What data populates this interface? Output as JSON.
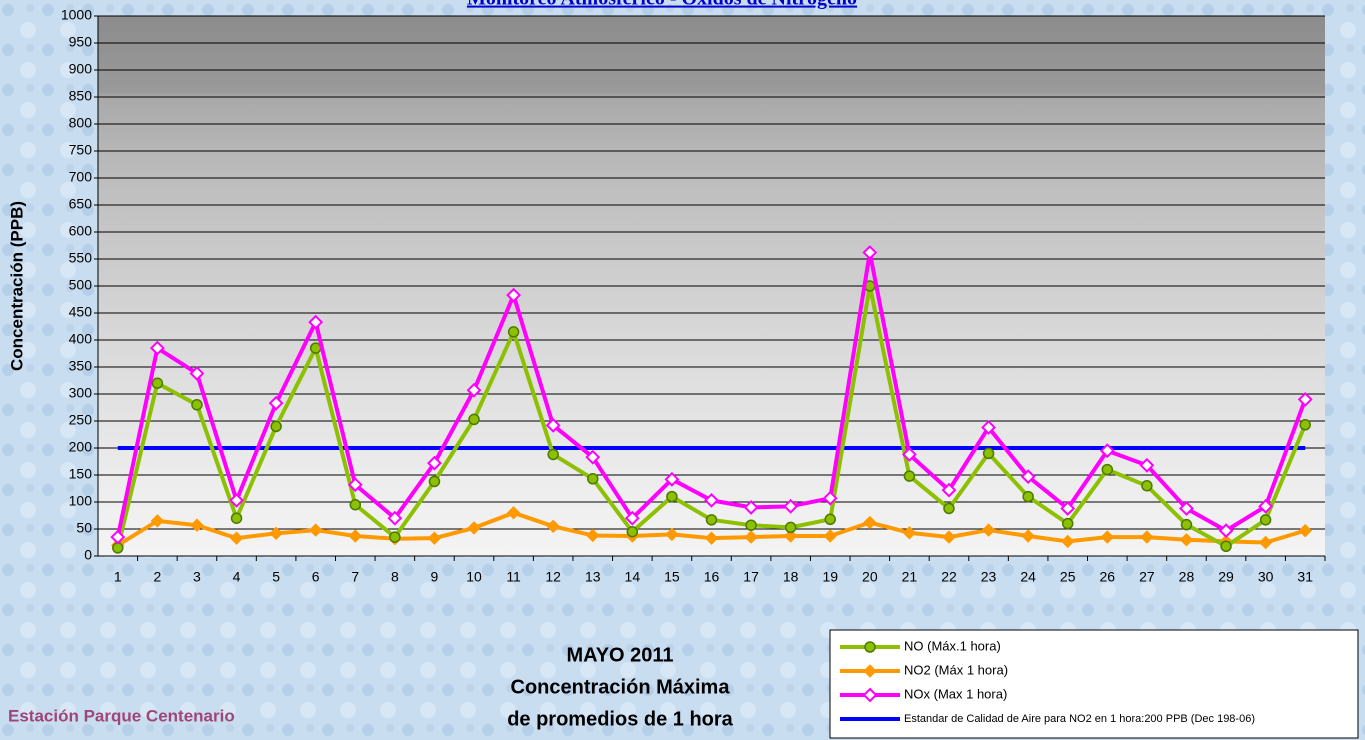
{
  "chart_data": {
    "type": "line",
    "title": "Monitoreo Atmosférico - Óxidos de Nitrógeno",
    "subtitle": [
      "MAYO 2011",
      "Concentración Máxima",
      "de promedios de 1 hora"
    ],
    "station": "Estación Parque Centenario",
    "y_label": "Concentración  (PPB)",
    "categories": [
      1,
      2,
      3,
      4,
      5,
      6,
      7,
      8,
      9,
      10,
      11,
      12,
      13,
      14,
      15,
      16,
      17,
      18,
      19,
      20,
      21,
      22,
      23,
      24,
      25,
      26,
      27,
      28,
      29,
      30,
      31
    ],
    "ylim": [
      0,
      1000
    ],
    "yticks": [
      0,
      50,
      100,
      150,
      200,
      250,
      300,
      350,
      400,
      450,
      500,
      550,
      600,
      650,
      700,
      750,
      800,
      850,
      900,
      950,
      1000
    ],
    "grid": true,
    "series": [
      {
        "name": "NO (Máx.1 hora)",
        "color": "#8cc000",
        "marker": "circle",
        "values": [
          15,
          320,
          280,
          70,
          240,
          385,
          95,
          35,
          138,
          253,
          415,
          188,
          143,
          45,
          110,
          67,
          57,
          53,
          68,
          500,
          148,
          88,
          190,
          110,
          60,
          160,
          130,
          58,
          18,
          67,
          243
        ]
      },
      {
        "name": "NO2 (Máx 1 hora)",
        "color": "#ff9900",
        "marker": "diamond",
        "values": [
          20,
          65,
          57,
          33,
          42,
          48,
          37,
          32,
          33,
          52,
          80,
          55,
          38,
          37,
          40,
          33,
          35,
          37,
          37,
          62,
          43,
          35,
          48,
          37,
          27,
          35,
          35,
          30,
          27,
          25,
          47
        ]
      },
      {
        "name": "NOx (Max 1 hora)",
        "color": "#ff00ff",
        "marker": "hollow-diamond",
        "values": [
          35,
          385,
          338,
          103,
          283,
          433,
          132,
          70,
          172,
          307,
          483,
          242,
          183,
          70,
          142,
          103,
          90,
          92,
          107,
          562,
          188,
          122,
          238,
          147,
          88,
          195,
          168,
          88,
          47,
          92,
          290
        ]
      },
      {
        "name": "Estandar de Calidad de Aire para NO2 en 1 hora:200 PPB (Dec 198-06)",
        "color": "#0000ff",
        "marker": "none",
        "values": [
          200,
          200,
          200,
          200,
          200,
          200,
          200,
          200,
          200,
          200,
          200,
          200,
          200,
          200,
          200,
          200,
          200,
          200,
          200,
          200,
          200,
          200,
          200,
          200,
          200,
          200,
          200,
          200,
          200,
          200,
          200
        ]
      }
    ]
  }
}
